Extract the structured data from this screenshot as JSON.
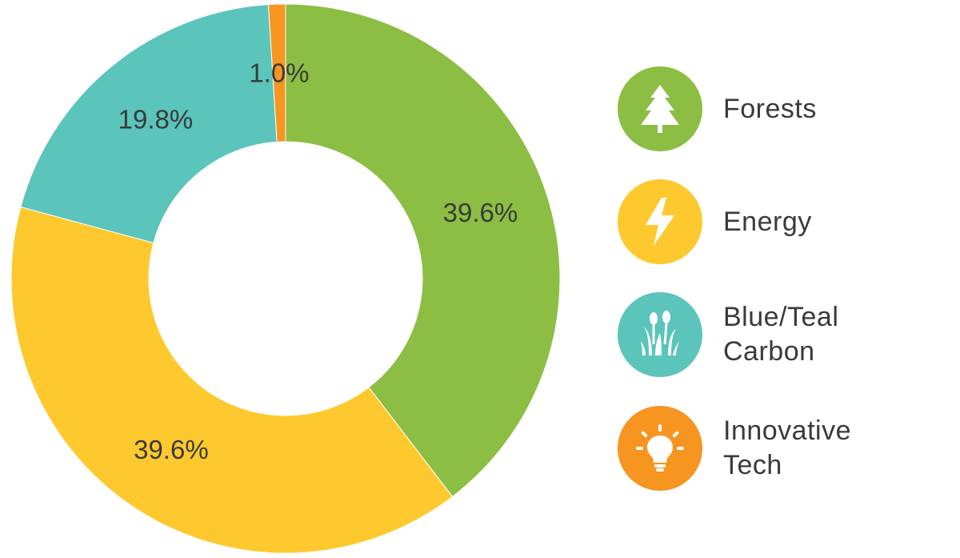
{
  "chart_data": {
    "type": "pie",
    "donut": true,
    "categories": [
      "Forests",
      "Energy",
      "Blue/Teal Carbon",
      "Innovative Tech"
    ],
    "values": [
      39.6,
      39.6,
      19.8,
      1.0
    ],
    "value_labels": [
      "39.6%",
      "39.6%",
      "19.8%",
      "1.0%"
    ],
    "colors": [
      "#8bbe43",
      "#fec92f",
      "#5bc4bb",
      "#f6951f"
    ],
    "title": "",
    "legend_placement": "right"
  },
  "legend": {
    "items": [
      {
        "lines": [
          "Forests"
        ],
        "icon": "tree-icon",
        "color": "#8bbe43"
      },
      {
        "lines": [
          "Energy"
        ],
        "icon": "lightning-bolt-icon",
        "color": "#fec92f"
      },
      {
        "lines": [
          "Blue/Teal",
          "Carbon"
        ],
        "icon": "cattail-plant-icon",
        "color": "#5bc4bb"
      },
      {
        "lines": [
          "Innovative",
          "Tech"
        ],
        "icon": "lightbulb-icon",
        "color": "#f6951f"
      }
    ]
  }
}
